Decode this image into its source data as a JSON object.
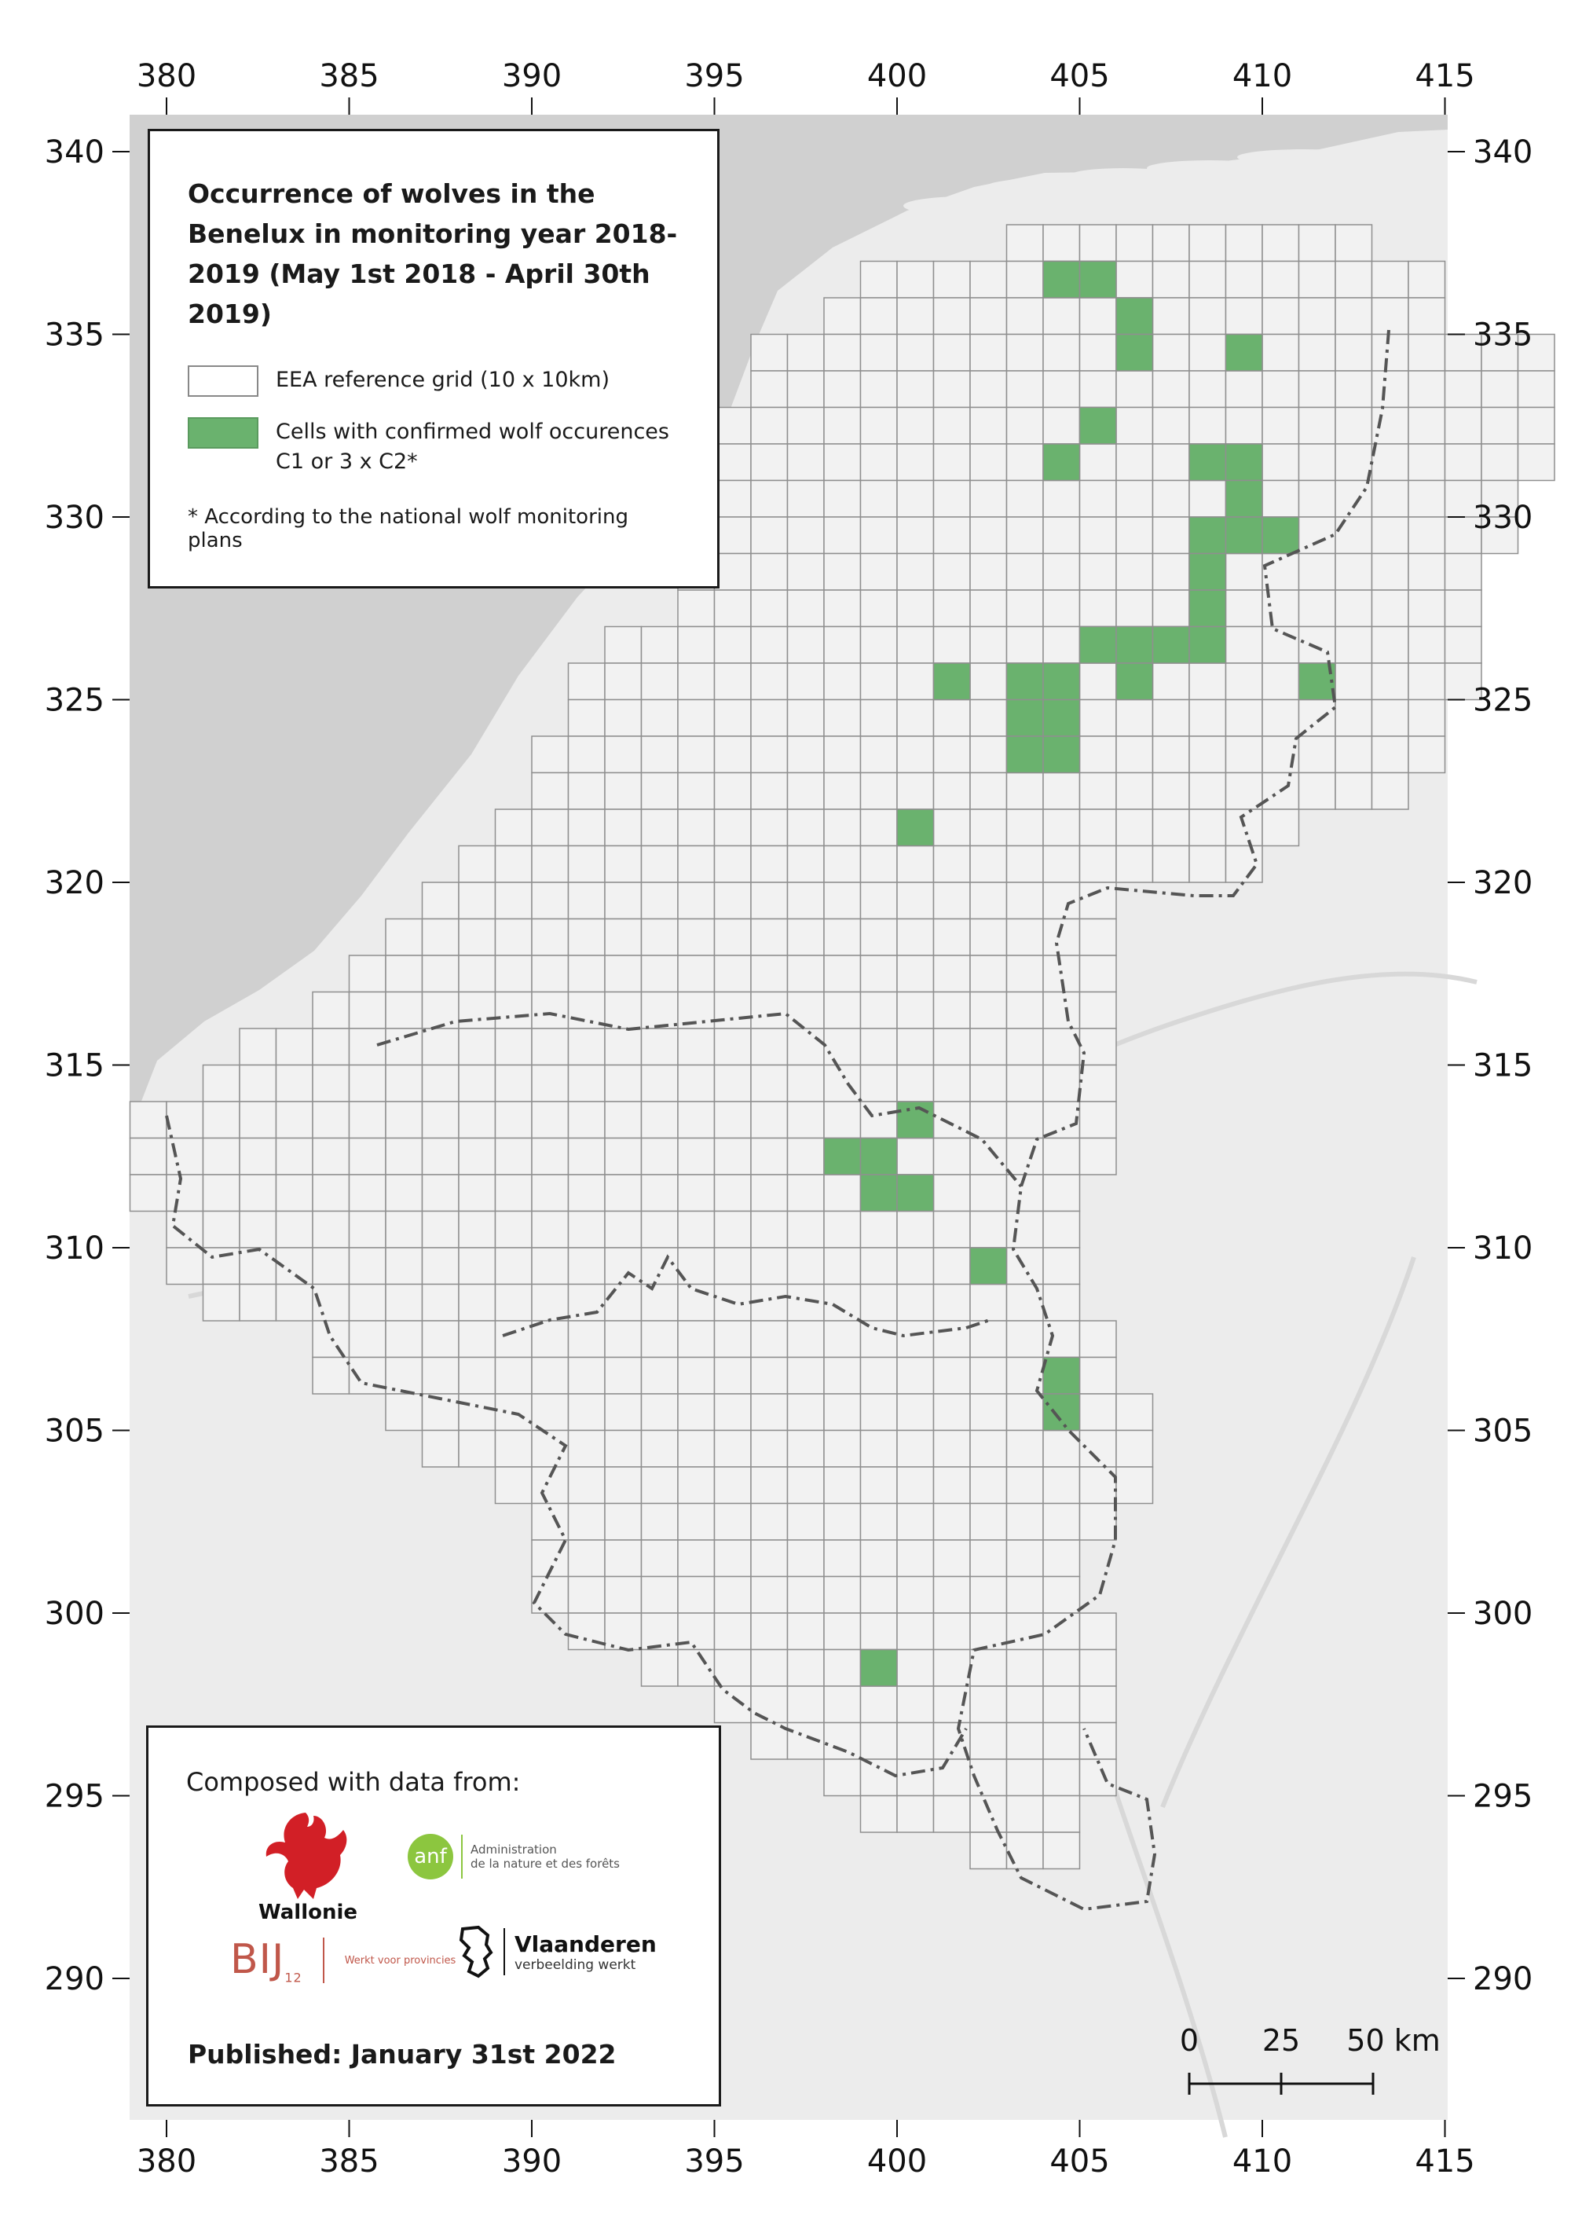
{
  "axes": {
    "x_ticks": [
      "380",
      "385",
      "390",
      "395",
      "400",
      "405",
      "410",
      "415"
    ],
    "y_ticks": [
      "340",
      "335",
      "330",
      "325",
      "320",
      "315",
      "310",
      "305",
      "300",
      "295",
      "290"
    ]
  },
  "legend": {
    "title": "Occurrence of wolves in the Benelux in monitoring year 2018-2019 (May 1st 2018 - April 30th 2019)",
    "grid_label": "EEA reference grid (10 x 10km)",
    "wolf_label_line1": "Cells with confirmed wolf occurences",
    "wolf_label_line2": "C1 or 3 x C2*",
    "footnote": "* According to the national wolf monitoring plans"
  },
  "credits": {
    "composed": "Composed with data from:",
    "wallonie": "Wallonie",
    "anf_short": "anf",
    "anf_line1": "Administration",
    "anf_line2": "de la nature et des forêts",
    "bij12": "BIJ",
    "bij12_sub": "12",
    "bij12_tag": "Werkt voor provincies",
    "vlaanderen": "Vlaanderen",
    "vlaanderen_tag": "verbeelding werkt",
    "published": "Published: January 31st 2022"
  },
  "scale_bar": {
    "labels": [
      "0",
      "25",
      "50 km"
    ]
  },
  "colors": {
    "sea": "#d0d0d0",
    "land": "#ececec",
    "grid_fill": "#f2f2f2",
    "grid_stroke": "#8f8f8f",
    "wolf": "#6ab26e",
    "border": "#555555",
    "river": "#d8d8d8"
  },
  "map_data": {
    "extent": {
      "x": [
        380,
        415
      ],
      "y": [
        287,
        341
      ]
    },
    "grid_rows": [
      {
        "y": 337,
        "x": [
          403,
          413
        ]
      },
      {
        "y": 336,
        "x": [
          399,
          415
        ]
      },
      {
        "y": 335,
        "x": [
          398,
          415
        ]
      },
      {
        "y": 334,
        "x": [
          396,
          418
        ]
      },
      {
        "y": 333,
        "x": [
          396,
          418
        ]
      },
      {
        "y": 332,
        "x": [
          395,
          418
        ]
      },
      {
        "y": 331,
        "x": [
          395,
          418
        ]
      },
      {
        "y": 330,
        "x": [
          395,
          417
        ]
      },
      {
        "y": 329,
        "x": [
          395,
          417
        ]
      },
      {
        "y": 328,
        "x": [
          394,
          416
        ]
      },
      {
        "y": 327,
        "x": [
          394,
          416
        ]
      },
      {
        "y": 326,
        "x": [
          392,
          416
        ]
      },
      {
        "y": 325,
        "x": [
          391,
          416
        ]
      },
      {
        "y": 324,
        "x": [
          391,
          415
        ]
      },
      {
        "y": 323,
        "x": [
          390,
          415
        ]
      },
      {
        "y": 322,
        "x": [
          390,
          414
        ]
      },
      {
        "y": 321,
        "x": [
          389,
          411
        ]
      },
      {
        "y": 320,
        "x": [
          388,
          410
        ]
      },
      {
        "y": 319,
        "x": [
          387,
          406
        ]
      },
      {
        "y": 318,
        "x": [
          386,
          406
        ]
      },
      {
        "y": 317,
        "x": [
          385,
          406
        ]
      },
      {
        "y": 316,
        "x": [
          384,
          406
        ]
      },
      {
        "y": 315,
        "x": [
          382,
          406
        ]
      },
      {
        "y": 314,
        "x": [
          381,
          406
        ]
      },
      {
        "y": 313,
        "x": [
          379,
          406
        ]
      },
      {
        "y": 312,
        "x": [
          379,
          406
        ]
      },
      {
        "y": 311,
        "x": [
          379,
          405
        ]
      },
      {
        "y": 310,
        "x": [
          380,
          405
        ]
      },
      {
        "y": 309,
        "x": [
          380,
          405
        ]
      },
      {
        "y": 308,
        "x": [
          381,
          405
        ]
      },
      {
        "y": 307,
        "x": [
          384,
          406
        ]
      },
      {
        "y": 306,
        "x": [
          384,
          406
        ]
      },
      {
        "y": 305,
        "x": [
          386,
          407
        ]
      },
      {
        "y": 304,
        "x": [
          387,
          407
        ]
      },
      {
        "y": 303,
        "x": [
          389,
          407
        ]
      },
      {
        "y": 302,
        "x": [
          390,
          406
        ]
      },
      {
        "y": 301,
        "x": [
          390,
          405
        ]
      },
      {
        "y": 300,
        "x": [
          390,
          405
        ]
      },
      {
        "y": 299,
        "x": [
          391,
          406
        ]
      },
      {
        "y": 298,
        "x": [
          393,
          406
        ]
      },
      {
        "y": 297,
        "x": [
          395,
          406
        ]
      },
      {
        "y": 296,
        "x": [
          396,
          406
        ]
      },
      {
        "y": 295,
        "x": [
          398,
          406
        ]
      },
      {
        "y": 294,
        "x": [
          399,
          405
        ]
      },
      {
        "y": 293,
        "x": [
          402,
          405
        ]
      }
    ],
    "wolf_cells": [
      [
        404,
        336
      ],
      [
        405,
        336
      ],
      [
        406,
        335
      ],
      [
        406,
        334
      ],
      [
        409,
        334
      ],
      [
        405,
        332
      ],
      [
        404,
        331
      ],
      [
        408,
        331
      ],
      [
        409,
        331
      ],
      [
        409,
        330
      ],
      [
        408,
        329
      ],
      [
        409,
        329
      ],
      [
        410,
        329
      ],
      [
        408,
        328
      ],
      [
        408,
        327
      ],
      [
        405,
        326
      ],
      [
        406,
        326
      ],
      [
        407,
        326
      ],
      [
        408,
        326
      ],
      [
        401,
        325
      ],
      [
        403,
        325
      ],
      [
        404,
        325
      ],
      [
        406,
        325
      ],
      [
        411,
        325
      ],
      [
        403,
        324
      ],
      [
        404,
        324
      ],
      [
        403,
        323
      ],
      [
        404,
        323
      ],
      [
        400,
        321
      ],
      [
        400,
        313
      ],
      [
        398,
        312
      ],
      [
        399,
        312
      ],
      [
        399,
        311
      ],
      [
        400,
        311
      ],
      [
        402,
        309
      ],
      [
        404,
        306
      ],
      [
        404,
        305
      ],
      [
        399,
        298
      ]
    ]
  }
}
